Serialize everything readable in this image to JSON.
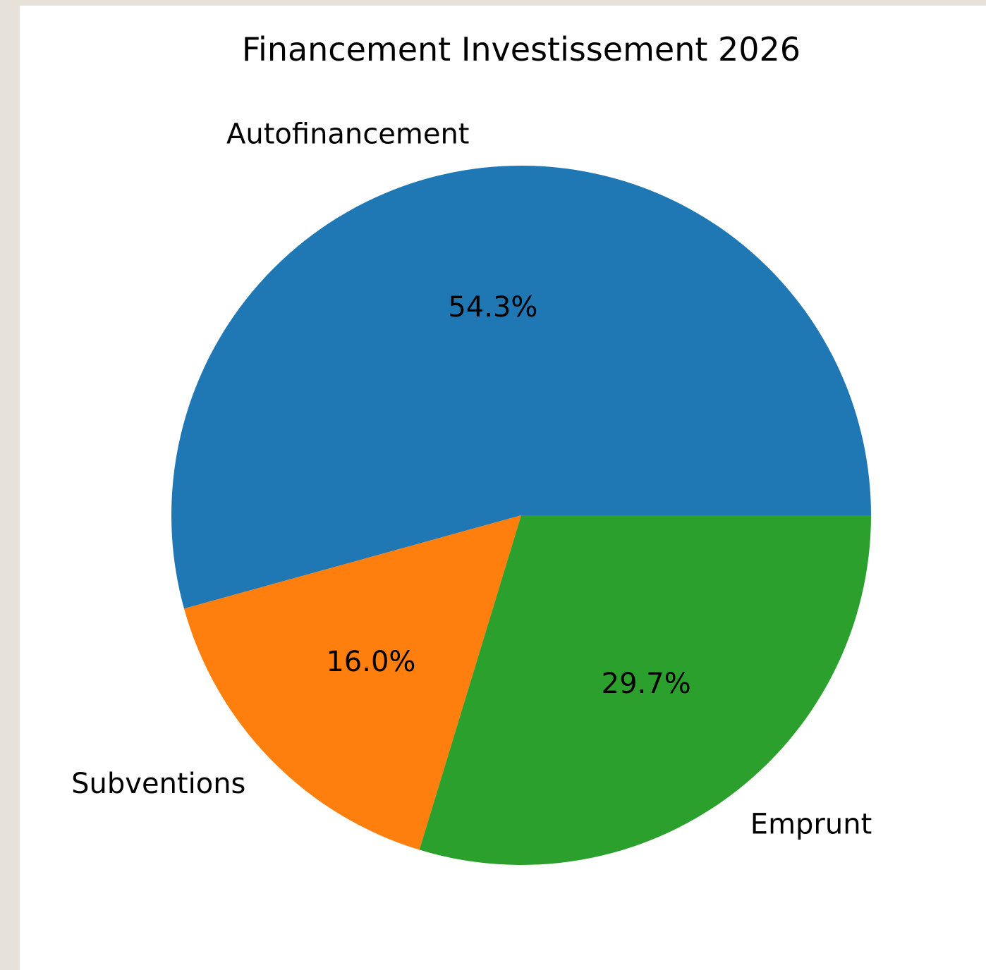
{
  "chart_data": {
    "type": "pie",
    "title": "Financement Investissement 2026",
    "slices": [
      {
        "label": "Autofinancement",
        "value": 54.3,
        "pct_text": "54.3%",
        "color": "#1f77b4"
      },
      {
        "label": "Subventions",
        "value": 16.0,
        "pct_text": "16.0%",
        "color": "#ff7f0e"
      },
      {
        "label": "Emprunt",
        "value": 29.7,
        "pct_text": "29.7%",
        "color": "#2ca02c"
      }
    ],
    "start_angle_deg": 0,
    "direction": "counterclockwise",
    "legend": "none"
  }
}
